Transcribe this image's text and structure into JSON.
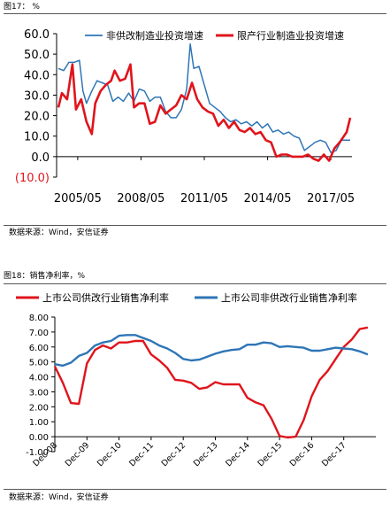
{
  "figure17": {
    "caption": "图17： %",
    "source": "数据来源：Wind，安信证券"
  },
  "figure18": {
    "caption": "图18：销售净利率，%",
    "source": "数据来源：Wind，安信证券"
  },
  "colors": {
    "blue": "#2e75b6",
    "red": "#e0141c",
    "axis": "#000000"
  },
  "chart_data": [
    {
      "type": "line",
      "title": "",
      "ylim": [
        -10,
        60
      ],
      "y_ticks": [
        -10,
        0,
        10,
        20,
        30,
        40,
        50,
        60
      ],
      "y_tick_labels": [
        "(10.0)",
        "0.0",
        "10.0",
        "20.0",
        "30.0",
        "40.0",
        "50.0",
        "60.0"
      ],
      "x_range": [
        "2004-05",
        "2018-05"
      ],
      "x_tick_labels": [
        "2005/05",
        "2008/05",
        "2011/05",
        "2014/05",
        "2017/05"
      ],
      "x_ticks": [
        "2005-05",
        "2008-05",
        "2011-05",
        "2014-05",
        "2017-05"
      ],
      "legend_position": "top",
      "series": [
        {
          "name": "非供改制造业投资增速",
          "color": "blue",
          "points": [
            [
              "2004-06",
              43
            ],
            [
              "2004-09",
              42
            ],
            [
              "2004-12",
              46
            ],
            [
              "2005-03",
              46
            ],
            [
              "2005-06",
              47
            ],
            [
              "2005-08",
              32
            ],
            [
              "2005-10",
              26
            ],
            [
              "2006-01",
              32
            ],
            [
              "2006-04",
              37
            ],
            [
              "2006-07",
              36
            ],
            [
              "2006-10",
              35
            ],
            [
              "2007-01",
              27
            ],
            [
              "2007-04",
              29
            ],
            [
              "2007-07",
              27
            ],
            [
              "2007-10",
              31
            ],
            [
              "2008-01",
              27
            ],
            [
              "2008-04",
              33
            ],
            [
              "2008-07",
              32
            ],
            [
              "2008-10",
              27
            ],
            [
              "2009-01",
              29
            ],
            [
              "2009-04",
              29
            ],
            [
              "2009-07",
              22
            ],
            [
              "2009-10",
              19
            ],
            [
              "2010-01",
              19
            ],
            [
              "2010-04",
              23
            ],
            [
              "2010-07",
              33
            ],
            [
              "2010-09",
              55
            ],
            [
              "2010-11",
              43
            ],
            [
              "2011-02",
              44
            ],
            [
              "2011-05",
              35
            ],
            [
              "2011-08",
              26
            ],
            [
              "2011-11",
              24
            ],
            [
              "2012-02",
              22
            ],
            [
              "2012-05",
              19
            ],
            [
              "2012-08",
              17
            ],
            [
              "2012-11",
              18
            ],
            [
              "2013-02",
              16
            ],
            [
              "2013-05",
              17
            ],
            [
              "2013-08",
              15
            ],
            [
              "2013-11",
              17
            ],
            [
              "2014-02",
              14
            ],
            [
              "2014-05",
              16
            ],
            [
              "2014-08",
              12
            ],
            [
              "2014-11",
              13
            ],
            [
              "2015-02",
              11
            ],
            [
              "2015-05",
              12
            ],
            [
              "2015-08",
              10
            ],
            [
              "2015-11",
              9
            ],
            [
              "2016-02",
              3
            ],
            [
              "2016-05",
              5
            ],
            [
              "2016-08",
              7
            ],
            [
              "2016-11",
              8
            ],
            [
              "2017-02",
              7
            ],
            [
              "2017-05",
              2
            ],
            [
              "2017-08",
              3
            ],
            [
              "2017-11",
              8
            ],
            [
              "2018-02",
              8
            ],
            [
              "2018-04",
              8
            ]
          ]
        },
        {
          "name": "限产行业制造业投资增速",
          "color": "red",
          "points": [
            [
              "2004-06",
              24
            ],
            [
              "2004-08",
              31
            ],
            [
              "2004-11",
              28
            ],
            [
              "2005-02",
              45
            ],
            [
              "2005-04",
              23
            ],
            [
              "2005-07",
              28
            ],
            [
              "2005-10",
              17
            ],
            [
              "2006-01",
              11
            ],
            [
              "2006-03",
              26
            ],
            [
              "2006-06",
              32
            ],
            [
              "2006-09",
              35
            ],
            [
              "2006-12",
              37
            ],
            [
              "2007-02",
              42
            ],
            [
              "2007-05",
              37
            ],
            [
              "2007-08",
              38
            ],
            [
              "2007-11",
              45
            ],
            [
              "2008-01",
              24
            ],
            [
              "2008-04",
              26
            ],
            [
              "2008-07",
              26
            ],
            [
              "2008-10",
              16
            ],
            [
              "2009-01",
              17
            ],
            [
              "2009-04",
              25
            ],
            [
              "2009-07",
              21
            ],
            [
              "2009-10",
              23
            ],
            [
              "2010-01",
              25
            ],
            [
              "2010-04",
              30
            ],
            [
              "2010-07",
              28
            ],
            [
              "2010-10",
              36
            ],
            [
              "2011-01",
              28
            ],
            [
              "2011-04",
              24
            ],
            [
              "2011-07",
              22
            ],
            [
              "2011-10",
              21
            ],
            [
              "2012-01",
              15
            ],
            [
              "2012-04",
              18
            ],
            [
              "2012-07",
              14
            ],
            [
              "2012-10",
              17
            ],
            [
              "2013-01",
              13
            ],
            [
              "2013-04",
              12
            ],
            [
              "2013-07",
              14
            ],
            [
              "2013-10",
              11
            ],
            [
              "2014-01",
              12
            ],
            [
              "2014-04",
              8
            ],
            [
              "2014-07",
              7
            ],
            [
              "2014-10",
              0
            ],
            [
              "2015-01",
              1
            ],
            [
              "2015-04",
              1
            ],
            [
              "2015-07",
              0
            ],
            [
              "2015-10",
              0
            ],
            [
              "2016-01",
              0
            ],
            [
              "2016-04",
              1
            ],
            [
              "2016-07",
              -1
            ],
            [
              "2016-10",
              -2
            ],
            [
              "2017-01",
              1
            ],
            [
              "2017-04",
              -2
            ],
            [
              "2017-07",
              4
            ],
            [
              "2017-10",
              7
            ],
            [
              "2018-02",
              12
            ],
            [
              "2018-04",
              19
            ]
          ]
        }
      ]
    },
    {
      "type": "line",
      "title": "",
      "ylim": [
        -1,
        8
      ],
      "y_ticks": [
        -1,
        0,
        1,
        2,
        3,
        4,
        5,
        6,
        7,
        8
      ],
      "y_tick_labels": [
        "-1.00",
        "0.00",
        "1.00",
        "2.00",
        "3.00",
        "4.00",
        "5.00",
        "6.00",
        "7.00",
        "8.00"
      ],
      "x_range": [
        "2008-12",
        "2018-12"
      ],
      "x_ticks": [
        "2008-12",
        "2009-12",
        "2010-12",
        "2011-12",
        "2012-12",
        "2013-12",
        "2014-12",
        "2015-12",
        "2016-12",
        "2017-12"
      ],
      "x_tick_labels": [
        "Dec-08",
        "Dec-09",
        "Dec-10",
        "Dec-11",
        "Dec-12",
        "Dec-13",
        "Dec-14",
        "Dec-15",
        "Dec-16",
        "Dec-17"
      ],
      "legend_position": "top",
      "series": [
        {
          "name": "上市公司供改行业销售净利率",
          "color": "red",
          "points": [
            [
              "2008-12",
              4.7
            ],
            [
              "2009-03",
              3.6
            ],
            [
              "2009-06",
              2.25
            ],
            [
              "2009-09",
              2.2
            ],
            [
              "2009-12",
              4.9
            ],
            [
              "2010-03",
              5.8
            ],
            [
              "2010-06",
              6.1
            ],
            [
              "2010-09",
              5.9
            ],
            [
              "2010-12",
              6.3
            ],
            [
              "2011-03",
              6.3
            ],
            [
              "2011-06",
              6.4
            ],
            [
              "2011-09",
              6.4
            ],
            [
              "2011-12",
              5.5
            ],
            [
              "2012-03",
              5.1
            ],
            [
              "2012-06",
              4.6
            ],
            [
              "2012-09",
              3.8
            ],
            [
              "2012-12",
              3.75
            ],
            [
              "2013-03",
              3.6
            ],
            [
              "2013-06",
              3.2
            ],
            [
              "2013-09",
              3.3
            ],
            [
              "2013-12",
              3.65
            ],
            [
              "2014-03",
              3.5
            ],
            [
              "2014-06",
              3.5
            ],
            [
              "2014-09",
              3.5
            ],
            [
              "2014-12",
              2.6
            ],
            [
              "2015-03",
              2.3
            ],
            [
              "2015-06",
              2.1
            ],
            [
              "2015-09",
              1.2
            ],
            [
              "2015-12",
              0.05
            ],
            [
              "2016-03",
              -0.05
            ],
            [
              "2016-06",
              0.0
            ],
            [
              "2016-09",
              1.1
            ],
            [
              "2016-12",
              2.7
            ],
            [
              "2017-03",
              3.8
            ],
            [
              "2017-06",
              4.4
            ],
            [
              "2017-09",
              5.2
            ],
            [
              "2017-12",
              6.0
            ],
            [
              "2018-03",
              6.5
            ],
            [
              "2018-06",
              7.2
            ],
            [
              "2018-09",
              7.3
            ]
          ]
        },
        {
          "name": "上市公司非供改行业销售净利率",
          "color": "blue",
          "points": [
            [
              "2008-12",
              4.85
            ],
            [
              "2009-03",
              4.75
            ],
            [
              "2009-06",
              4.95
            ],
            [
              "2009-09",
              5.4
            ],
            [
              "2009-12",
              5.6
            ],
            [
              "2010-03",
              6.1
            ],
            [
              "2010-06",
              6.3
            ],
            [
              "2010-09",
              6.4
            ],
            [
              "2010-12",
              6.75
            ],
            [
              "2011-03",
              6.8
            ],
            [
              "2011-06",
              6.8
            ],
            [
              "2011-09",
              6.6
            ],
            [
              "2011-12",
              6.4
            ],
            [
              "2012-03",
              6.1
            ],
            [
              "2012-06",
              5.9
            ],
            [
              "2012-09",
              5.6
            ],
            [
              "2012-12",
              5.2
            ],
            [
              "2013-03",
              5.1
            ],
            [
              "2013-06",
              5.15
            ],
            [
              "2013-09",
              5.35
            ],
            [
              "2013-12",
              5.55
            ],
            [
              "2014-03",
              5.7
            ],
            [
              "2014-06",
              5.8
            ],
            [
              "2014-09",
              5.85
            ],
            [
              "2014-12",
              6.15
            ],
            [
              "2015-03",
              6.15
            ],
            [
              "2015-06",
              6.3
            ],
            [
              "2015-09",
              6.25
            ],
            [
              "2015-12",
              6.0
            ],
            [
              "2016-03",
              6.05
            ],
            [
              "2016-06",
              6.0
            ],
            [
              "2016-09",
              5.95
            ],
            [
              "2016-12",
              5.75
            ],
            [
              "2017-03",
              5.75
            ],
            [
              "2017-06",
              5.85
            ],
            [
              "2017-09",
              5.95
            ],
            [
              "2017-12",
              5.9
            ],
            [
              "2018-03",
              5.85
            ],
            [
              "2018-06",
              5.7
            ],
            [
              "2018-09",
              5.5
            ]
          ]
        }
      ]
    }
  ]
}
